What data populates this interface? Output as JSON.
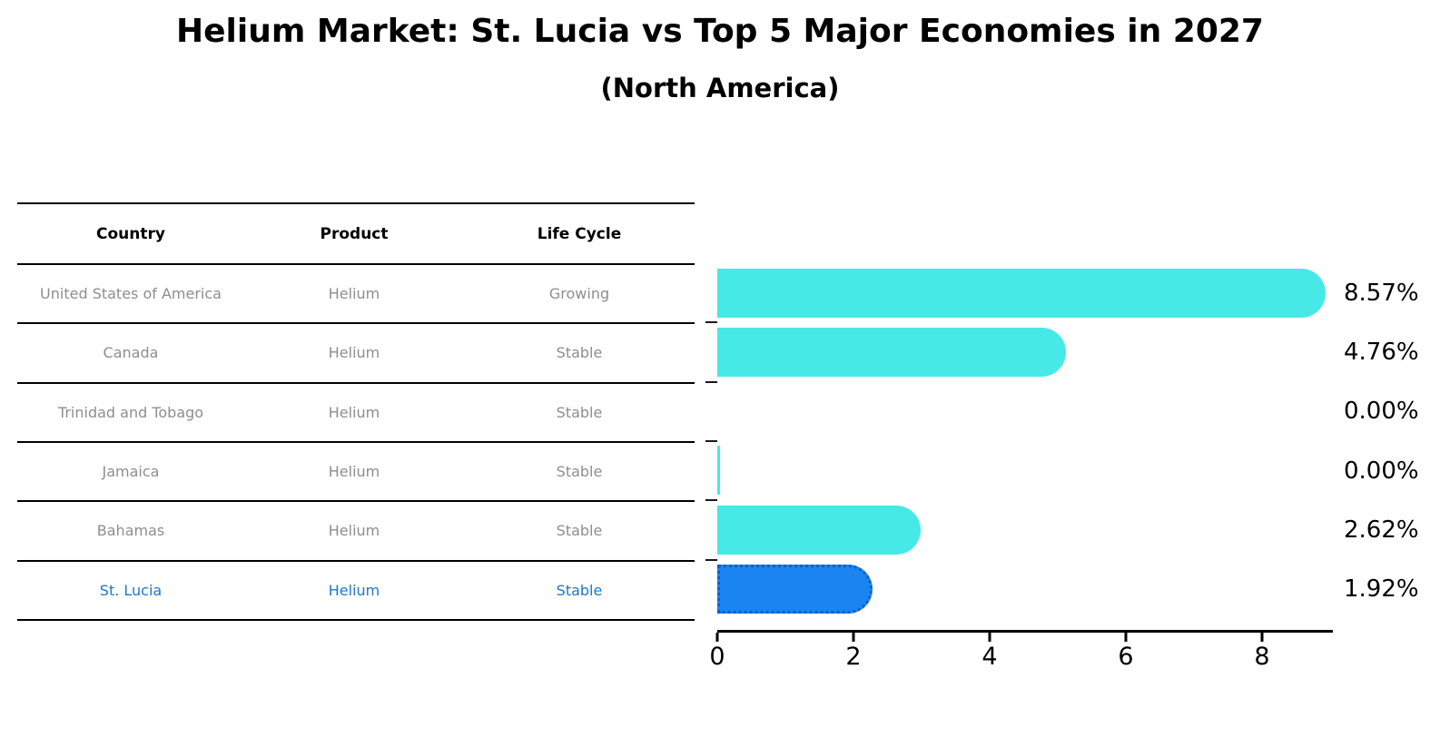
{
  "title": "Helium Market: St. Lucia vs Top 5 Major Economies in 2027",
  "subtitle": "(North America)",
  "table": {
    "headers": [
      "Country",
      "Product",
      "Life Cycle"
    ],
    "rows": [
      {
        "country": "United States of America",
        "product": "Helium",
        "life_cycle": "Growing",
        "highlighted": false
      },
      {
        "country": "Canada",
        "product": "Helium",
        "life_cycle": "Stable",
        "highlighted": false
      },
      {
        "country": "Trinidad and Tobago",
        "product": "Helium",
        "life_cycle": "Stable",
        "highlighted": false
      },
      {
        "country": "Jamaica",
        "product": "Helium",
        "life_cycle": "Stable",
        "highlighted": false
      },
      {
        "country": "Bahamas",
        "product": "Helium",
        "life_cycle": "Stable",
        "highlighted": false
      },
      {
        "country": "St. Lucia",
        "product": "Helium",
        "life_cycle": "Stable",
        "highlighted": true
      }
    ]
  },
  "chart_data": {
    "type": "bar",
    "orientation": "horizontal",
    "title": "Helium Market: St. Lucia vs Top 5 Major Economies in 2027",
    "subtitle": "(North America)",
    "categories": [
      "United States of America",
      "Canada",
      "Trinidad and Tobago",
      "Jamaica",
      "Bahamas",
      "St. Lucia"
    ],
    "values": [
      8.57,
      4.76,
      0.0,
      0.0,
      2.62,
      1.92
    ],
    "value_labels": [
      "8.57%",
      "4.76%",
      "0.00%",
      "0.00%",
      "2.62%",
      "1.92%"
    ],
    "x_ticks": [
      0,
      2,
      4,
      6,
      8
    ],
    "x_tick_labels": [
      "0",
      "2",
      "4",
      "6",
      "8"
    ],
    "xlim": [
      0,
      9
    ],
    "grid": false,
    "legend": false,
    "highlight_index": 5,
    "sliver_indices": [
      3
    ],
    "bar_color": "#46e9e6",
    "highlight_bar_color": "#1a84f0",
    "highlight_border_color": "#0f5fc8",
    "highlight_text_color": "#1f77c4",
    "table_text_color": "#8e8e8e"
  }
}
